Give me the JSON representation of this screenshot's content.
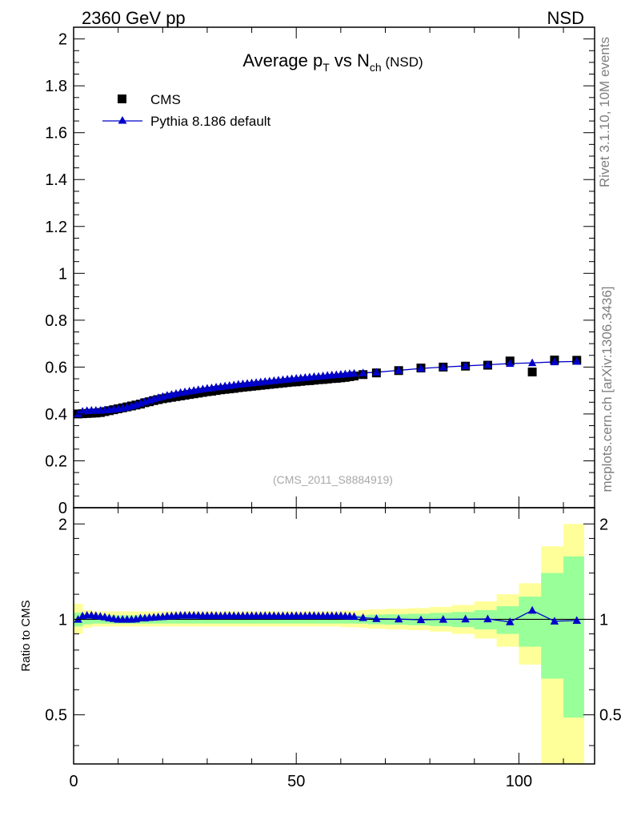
{
  "header": {
    "energy_label": "2360 GeV pp",
    "process_label": "NSD"
  },
  "side_labels": {
    "rivet": "Rivet 3.1.10,  10M events",
    "mcplots": "mcplots.cern.ch [arXiv:1306.3436]"
  },
  "chart_data": [
    {
      "type": "scatter",
      "title": "Average p_T vs N_ch (NSD)",
      "title_parts": {
        "a": "Average p",
        "a_sub": "T",
        "b": " vs N",
        "b_sub": "ch",
        "c": " (NSD)"
      },
      "watermark": "(CMS_2011_S8884919)",
      "xlim": [
        0,
        117
      ],
      "ylim": [
        0,
        2.05
      ],
      "grid": false,
      "legend_position": "top-left",
      "x_ticks": [
        0,
        50,
        100
      ],
      "x_tick_labels": [
        "0",
        "50",
        "100"
      ],
      "y_ticks": [
        0,
        0.2,
        0.4,
        0.6,
        0.8,
        1,
        1.2,
        1.4,
        1.6,
        1.8,
        2
      ],
      "y_tick_labels": [
        "0",
        "0.2",
        "0.4",
        "0.6",
        "0.8",
        "1",
        "1.2",
        "1.4",
        "1.6",
        "1.8",
        "2"
      ],
      "series": [
        {
          "name": "CMS",
          "marker": "square",
          "color": "#000000",
          "x": [
            1,
            2,
            3,
            4,
            5,
            6,
            7,
            8,
            9,
            10,
            11,
            12,
            13,
            14,
            15,
            16,
            17,
            18,
            19,
            20,
            21,
            22,
            23,
            24,
            25,
            26,
            27,
            28,
            29,
            30,
            31,
            32,
            33,
            34,
            35,
            36,
            37,
            38,
            39,
            40,
            41,
            42,
            43,
            44,
            45,
            46,
            47,
            48,
            49,
            50,
            51,
            52,
            53,
            54,
            55,
            56,
            57,
            58,
            59,
            60,
            61,
            62,
            63,
            65,
            68,
            73,
            78,
            83,
            88,
            93,
            98,
            103,
            108,
            113
          ],
          "y": [
            0.4,
            0.401,
            0.402,
            0.403,
            0.404,
            0.406,
            0.41,
            0.414,
            0.418,
            0.422,
            0.426,
            0.43,
            0.434,
            0.438,
            0.442,
            0.448,
            0.452,
            0.457,
            0.461,
            0.465,
            0.468,
            0.471,
            0.474,
            0.477,
            0.48,
            0.483,
            0.486,
            0.489,
            0.492,
            0.495,
            0.497,
            0.5,
            0.503,
            0.505,
            0.507,
            0.509,
            0.512,
            0.514,
            0.516,
            0.518,
            0.52,
            0.522,
            0.524,
            0.526,
            0.528,
            0.53,
            0.532,
            0.534,
            0.536,
            0.537,
            0.539,
            0.541,
            0.542,
            0.544,
            0.546,
            0.547,
            0.549,
            0.551,
            0.552,
            0.554,
            0.556,
            0.559,
            0.562,
            0.568,
            0.575,
            0.585,
            0.596,
            0.6,
            0.604,
            0.608,
            0.626,
            0.579,
            0.63,
            0.629
          ]
        },
        {
          "name": "Pythia 8.186 default",
          "marker": "triangle",
          "color": "#0000cc",
          "x": [
            1,
            2,
            3,
            4,
            5,
            6,
            7,
            8,
            9,
            10,
            11,
            12,
            13,
            14,
            15,
            16,
            17,
            18,
            19,
            20,
            21,
            22,
            23,
            24,
            25,
            26,
            27,
            28,
            29,
            30,
            31,
            32,
            33,
            34,
            35,
            36,
            37,
            38,
            39,
            40,
            41,
            42,
            43,
            44,
            45,
            46,
            47,
            48,
            49,
            50,
            51,
            52,
            53,
            54,
            55,
            56,
            57,
            58,
            59,
            60,
            61,
            62,
            63,
            65,
            68,
            73,
            78,
            83,
            88,
            93,
            98,
            103,
            108,
            113
          ],
          "y": [
            0.4,
            0.411,
            0.414,
            0.415,
            0.415,
            0.415,
            0.417,
            0.418,
            0.42,
            0.422,
            0.425,
            0.429,
            0.434,
            0.439,
            0.446,
            0.452,
            0.458,
            0.464,
            0.469,
            0.474,
            0.479,
            0.483,
            0.487,
            0.491,
            0.494,
            0.497,
            0.5,
            0.503,
            0.506,
            0.509,
            0.511,
            0.514,
            0.516,
            0.519,
            0.521,
            0.523,
            0.526,
            0.528,
            0.53,
            0.532,
            0.534,
            0.536,
            0.538,
            0.54,
            0.542,
            0.544,
            0.546,
            0.548,
            0.55,
            0.552,
            0.553,
            0.555,
            0.557,
            0.559,
            0.56,
            0.562,
            0.564,
            0.566,
            0.567,
            0.569,
            0.57,
            0.572,
            0.573,
            0.575,
            0.578,
            0.586,
            0.594,
            0.6,
            0.605,
            0.61,
            0.615,
            0.618,
            0.622,
            0.624
          ]
        }
      ]
    },
    {
      "type": "scatter",
      "ylabel": "Ratio to CMS",
      "xlim": [
        0,
        117
      ],
      "ylim": [
        0.35,
        2.25
      ],
      "y_scale": "log",
      "grid": false,
      "x_ticks": [
        0,
        50,
        100
      ],
      "x_tick_labels": [
        "0",
        "50",
        "100"
      ],
      "y_ticks": [
        0.5,
        1,
        2
      ],
      "y_tick_labels": [
        "0.5",
        "1",
        "2"
      ],
      "reference_line": 1,
      "bands": {
        "x_edges": [
          0,
          2,
          4,
          6,
          8,
          10,
          12,
          14,
          16,
          18,
          20,
          22,
          24,
          26,
          28,
          30,
          32,
          34,
          36,
          38,
          40,
          42,
          44,
          46,
          48,
          50,
          52,
          54,
          56,
          58,
          60,
          62,
          64,
          66,
          70,
          75,
          80,
          85,
          90,
          95,
          100,
          105,
          110,
          114.6
        ],
        "inner_lo": [
          0.95,
          0.965,
          0.97,
          0.97,
          0.97,
          0.97,
          0.97,
          0.97,
          0.97,
          0.97,
          0.97,
          0.97,
          0.97,
          0.97,
          0.97,
          0.97,
          0.97,
          0.97,
          0.97,
          0.97,
          0.97,
          0.97,
          0.97,
          0.97,
          0.97,
          0.97,
          0.97,
          0.97,
          0.97,
          0.97,
          0.97,
          0.97,
          0.97,
          0.965,
          0.962,
          0.958,
          0.952,
          0.945,
          0.93,
          0.9,
          0.82,
          0.65,
          0.49
        ],
        "inner_hi": [
          1.05,
          1.035,
          1.03,
          1.03,
          1.03,
          1.03,
          1.03,
          1.03,
          1.03,
          1.03,
          1.03,
          1.03,
          1.03,
          1.03,
          1.03,
          1.03,
          1.03,
          1.03,
          1.03,
          1.03,
          1.03,
          1.03,
          1.03,
          1.03,
          1.03,
          1.03,
          1.03,
          1.03,
          1.03,
          1.03,
          1.03,
          1.03,
          1.03,
          1.035,
          1.038,
          1.042,
          1.048,
          1.055,
          1.07,
          1.1,
          1.18,
          1.4,
          1.58
        ],
        "outer_lo": [
          0.9,
          0.94,
          0.95,
          0.95,
          0.95,
          0.95,
          0.95,
          0.95,
          0.95,
          0.95,
          0.95,
          0.95,
          0.95,
          0.95,
          0.95,
          0.95,
          0.95,
          0.95,
          0.95,
          0.95,
          0.95,
          0.95,
          0.95,
          0.95,
          0.95,
          0.95,
          0.95,
          0.95,
          0.95,
          0.95,
          0.945,
          0.945,
          0.94,
          0.935,
          0.93,
          0.925,
          0.915,
          0.9,
          0.87,
          0.82,
          0.72,
          0.35,
          0.35
        ],
        "outer_hi": [
          1.12,
          1.07,
          1.06,
          1.06,
          1.06,
          1.06,
          1.06,
          1.06,
          1.06,
          1.06,
          1.06,
          1.06,
          1.06,
          1.06,
          1.06,
          1.06,
          1.06,
          1.06,
          1.06,
          1.06,
          1.06,
          1.06,
          1.06,
          1.06,
          1.06,
          1.06,
          1.06,
          1.06,
          1.06,
          1.06,
          1.065,
          1.065,
          1.07,
          1.075,
          1.08,
          1.085,
          1.095,
          1.11,
          1.14,
          1.2,
          1.3,
          1.7,
          2.0
        ],
        "inner_color": "#99ff99",
        "outer_color": "#ffff99"
      },
      "series": [
        {
          "name": "Pythia 8.186 default / CMS",
          "marker": "triangle",
          "color": "#0000cc",
          "x": [
            1,
            2,
            3,
            4,
            5,
            6,
            7,
            8,
            9,
            10,
            11,
            12,
            13,
            14,
            15,
            16,
            17,
            18,
            19,
            20,
            21,
            22,
            23,
            24,
            25,
            26,
            27,
            28,
            29,
            30,
            31,
            32,
            33,
            34,
            35,
            36,
            37,
            38,
            39,
            40,
            41,
            42,
            43,
            44,
            45,
            46,
            47,
            48,
            49,
            50,
            51,
            52,
            53,
            54,
            55,
            56,
            57,
            58,
            59,
            60,
            61,
            62,
            63,
            65,
            68,
            73,
            78,
            83,
            88,
            93,
            98,
            103,
            108,
            113
          ],
          "y": [
            1.0,
            1.025,
            1.03,
            1.03,
            1.027,
            1.022,
            1.017,
            1.01,
            1.005,
            1.0,
            1.0,
            1.0,
            1.0,
            1.002,
            1.009,
            1.009,
            1.013,
            1.015,
            1.017,
            1.019,
            1.024,
            1.025,
            1.027,
            1.029,
            1.029,
            1.029,
            1.029,
            1.029,
            1.028,
            1.028,
            1.028,
            1.028,
            1.026,
            1.028,
            1.028,
            1.027,
            1.027,
            1.027,
            1.027,
            1.027,
            1.027,
            1.027,
            1.027,
            1.027,
            1.027,
            1.026,
            1.026,
            1.026,
            1.026,
            1.028,
            1.026,
            1.026,
            1.028,
            1.028,
            1.026,
            1.027,
            1.027,
            1.027,
            1.027,
            1.027,
            1.025,
            1.023,
            1.02,
            1.012,
            1.005,
            1.002,
            0.997,
            1.0,
            1.002,
            1.003,
            0.982,
            1.067,
            0.987,
            0.992
          ]
        }
      ]
    }
  ]
}
